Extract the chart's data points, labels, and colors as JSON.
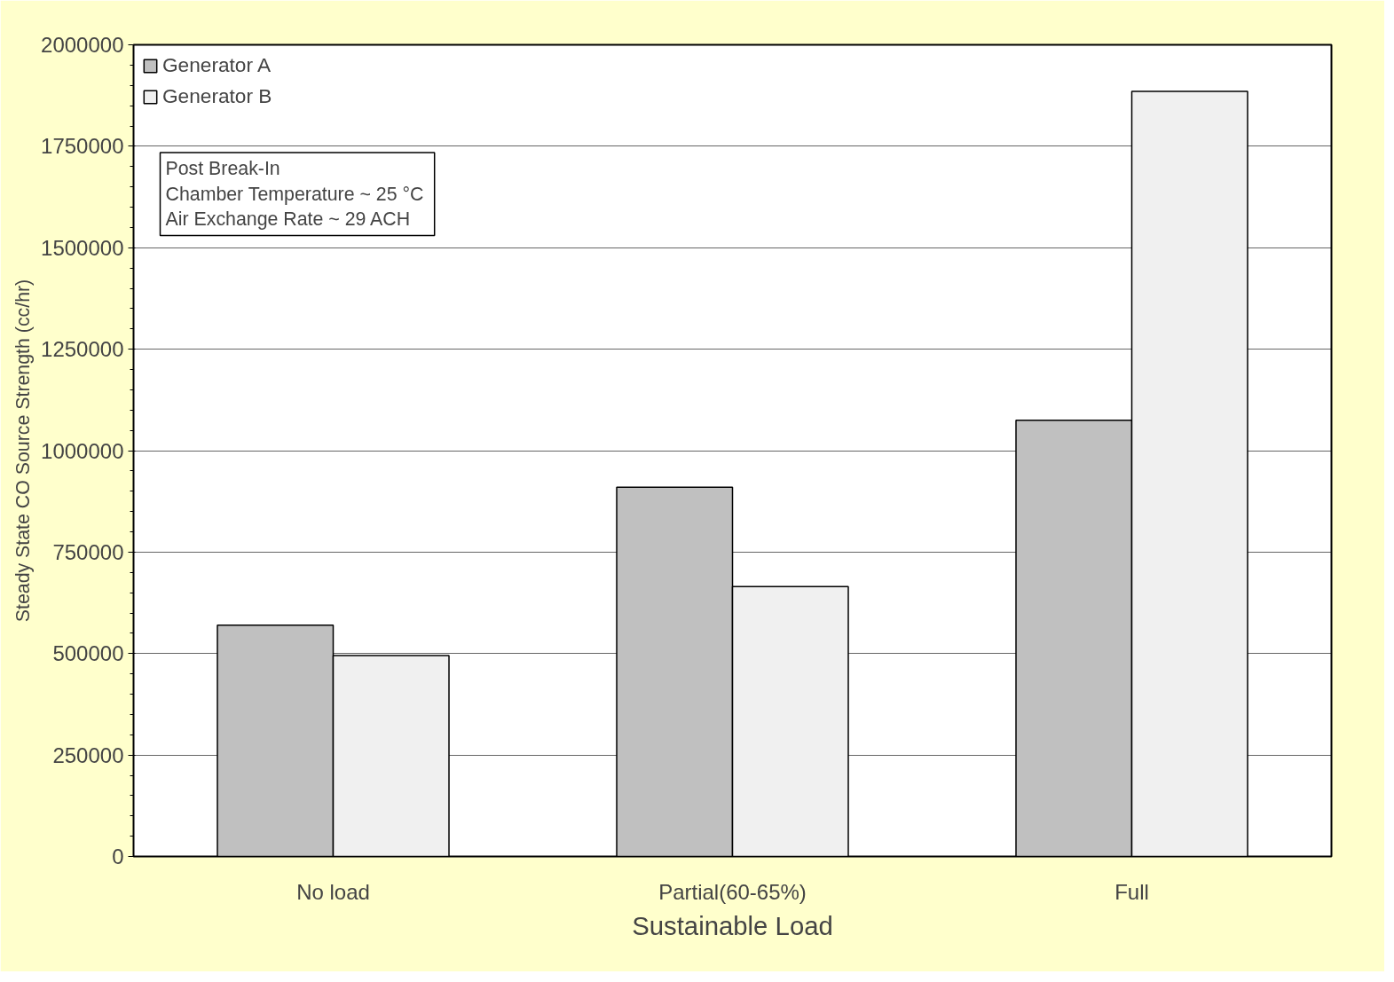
{
  "chart_data": {
    "type": "bar",
    "xlabel": "Sustainable Load",
    "ylabel": "Steady State CO Source Strength (cc/hr)",
    "categories": [
      "No load",
      "Partial(60-65%)",
      "Full"
    ],
    "series": [
      {
        "name": "Generator A",
        "color": "#c0c0c0",
        "values": [
          570000,
          910000,
          1075000
        ]
      },
      {
        "name": "Generator B",
        "color": "#f0f0f0",
        "values": [
          495000,
          665000,
          1885000
        ]
      }
    ],
    "ylim": [
      0,
      2000000
    ],
    "yticks": [
      0,
      250000,
      500000,
      750000,
      1000000,
      1250000,
      1500000,
      1750000,
      2000000
    ],
    "grid": "y",
    "legend": "top left",
    "annotations": [
      "Post Break-In\nChamber Temperature  ~ 25 °C\nAir Exchange Rate ~ 29 ACH"
    ]
  }
}
